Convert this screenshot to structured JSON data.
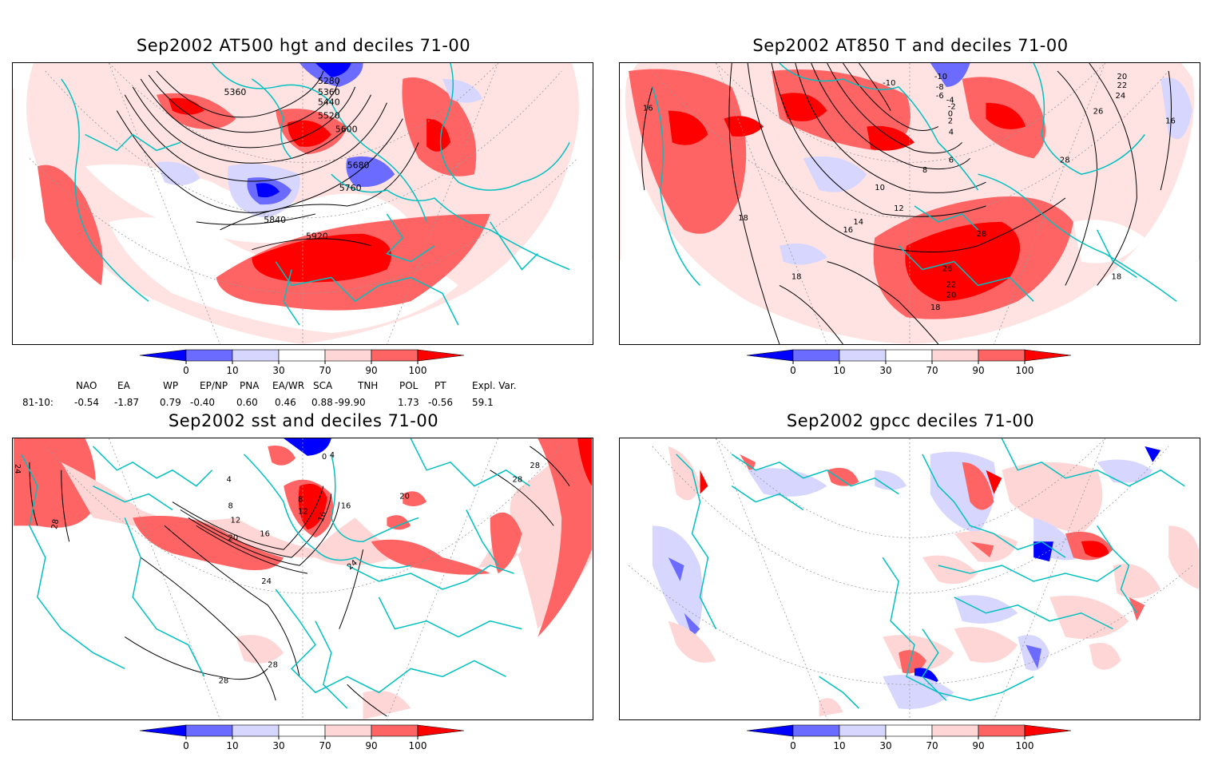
{
  "panels": [
    {
      "title": "Sep2002 AT500 hgt and deciles 71-00",
      "contour_labels": [
        "5280",
        "5360",
        "5360",
        "5440",
        "5520",
        "5600",
        "5680",
        "5760",
        "5840",
        "5920"
      ]
    },
    {
      "title": "Sep2002 AT850 T and deciles 71-00",
      "contour_labels": [
        "-10",
        "-10",
        "-8",
        "-6",
        "-4",
        "-2",
        "0",
        "2",
        "4",
        "6",
        "8",
        "10",
        "12",
        "14",
        "16",
        "16",
        "16",
        "18",
        "18",
        "18",
        "20",
        "22",
        "24",
        "26",
        "28",
        "28",
        "26",
        "22",
        "20",
        "18"
      ]
    },
    {
      "title": "Sep2002 sst and deciles 71-00",
      "contour_labels": [
        "24",
        "28",
        "4",
        "8",
        "12",
        "16",
        "20",
        "24",
        "28",
        "28",
        "0",
        "4",
        "8",
        "12",
        "16",
        "16",
        "20",
        "24",
        "28",
        "28"
      ]
    },
    {
      "title": "Sep2002 gpcc deciles 71-00",
      "contour_labels": []
    }
  ],
  "colorbar": {
    "ticks": [
      "0",
      "10",
      "30",
      "70",
      "90",
      "100"
    ],
    "colors": [
      "#0000ff",
      "#6b6bff",
      "#d6d6ff",
      "#ffffff",
      "#ffd6d6",
      "#ff6464",
      "#ff0000"
    ]
  },
  "indices": {
    "row_label": "81-10:",
    "headers": [
      "NAO",
      "EA",
      "WP",
      "EP/NP",
      "PNA",
      "EA/WR",
      "SCA",
      "TNH",
      "POL",
      "PT",
      "Expl. Var."
    ],
    "values": [
      "-0.54",
      "-1.87",
      "0.79",
      "-0.40",
      "0.60",
      "0.46",
      "0.88",
      "-99.90",
      "1.73",
      "-0.56",
      "59.1"
    ]
  },
  "colors": {
    "coast": "#00c0c0",
    "contour": "#000000",
    "grid": "#999999"
  }
}
